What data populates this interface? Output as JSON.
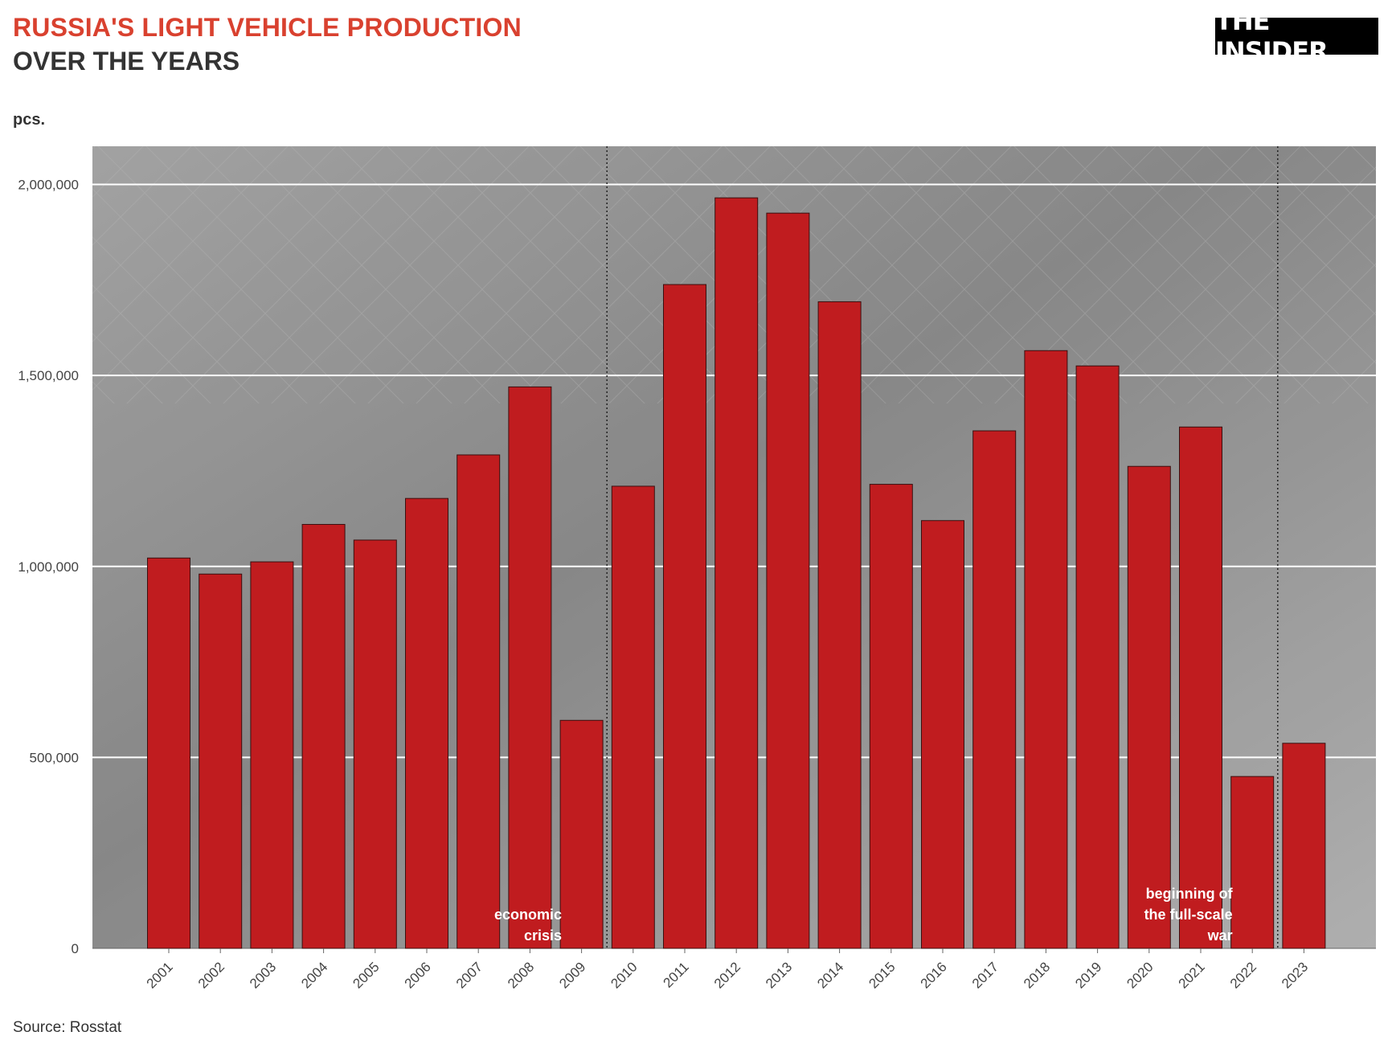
{
  "header": {
    "title_line1": "RUSSIA'S LIGHT VEHICLE PRODUCTION",
    "title_line2": "OVER THE YEARS",
    "logo": "THE INSIDER"
  },
  "footer": {
    "source": "Source: Rosstat"
  },
  "colors": {
    "bar": "#c01c1f",
    "title_accent": "#d9412f",
    "plot_background": "#8e8e8e",
    "gridline": "#ffffff"
  },
  "chart_data": {
    "type": "bar",
    "title": "RUSSIA'S LIGHT VEHICLE PRODUCTION OVER THE YEARS",
    "ylabel": "pcs.",
    "xlabel": "",
    "ylim": [
      0,
      2100000
    ],
    "yticks": [
      0,
      500000,
      1000000,
      1500000,
      2000000
    ],
    "ytick_labels": [
      "0",
      "500,000",
      "1,000,000",
      "1,500,000",
      "2,000,000"
    ],
    "grid": true,
    "categories": [
      "2001",
      "2002",
      "2003",
      "2004",
      "2005",
      "2006",
      "2007",
      "2008",
      "2009",
      "2010",
      "2011",
      "2012",
      "2013",
      "2014",
      "2015",
      "2016",
      "2017",
      "2018",
      "2019",
      "2020",
      "2021",
      "2022",
      "2023"
    ],
    "values": [
      1022000,
      980000,
      1012000,
      1110000,
      1069000,
      1178000,
      1292000,
      1470000,
      597000,
      1210000,
      1738000,
      1965000,
      1925000,
      1693000,
      1215000,
      1120000,
      1355000,
      1565000,
      1525000,
      1262000,
      1365000,
      450000,
      537000
    ],
    "annotations": [
      {
        "after_category": "2009",
        "lines": [
          "economic",
          "crisis"
        ]
      },
      {
        "after_category": "2022",
        "lines": [
          "beginning of",
          "the full-scale",
          "war"
        ]
      }
    ]
  }
}
